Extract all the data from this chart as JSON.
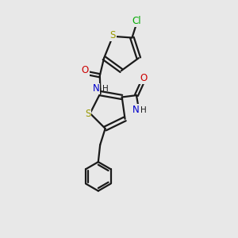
{
  "bg_color": "#e8e8e8",
  "bond_color": "#1a1a1a",
  "bond_width": 1.6,
  "atom_colors": {
    "S": "#999900",
    "O": "#cc0000",
    "N": "#0000cc",
    "Cl": "#00aa00",
    "C": "#1a1a1a"
  },
  "font_size_atom": 8.5,
  "font_size_small": 7.5
}
